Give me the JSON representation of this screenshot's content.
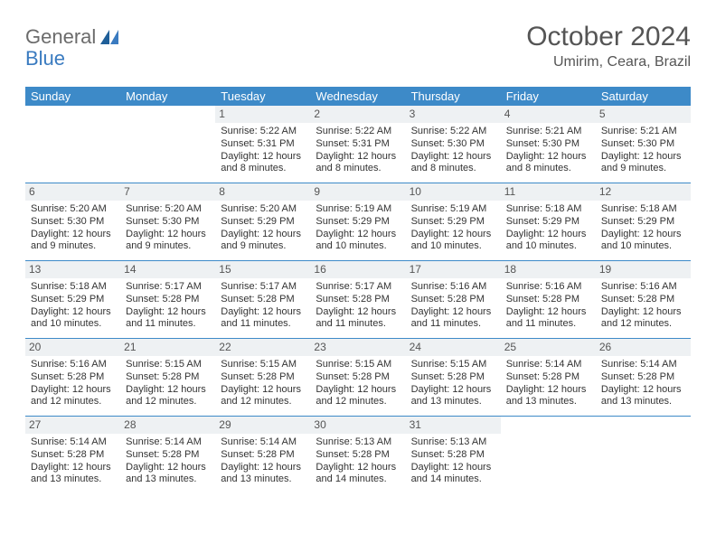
{
  "logo": {
    "word1": "General",
    "word2": "Blue"
  },
  "title": "October 2024",
  "location": "Umirim, Ceara, Brazil",
  "colors": {
    "header_bar": "#3d8ac8",
    "header_text": "#ffffff",
    "daynum_bg": "#eef1f3",
    "row_border": "#3d8ac8",
    "logo_gray": "#6b6b6b",
    "logo_blue": "#3a7bc0",
    "body_text": "#333333",
    "title_text": "#555555",
    "background": "#ffffff"
  },
  "typography": {
    "title_fontsize": 30,
    "location_fontsize": 16,
    "weekday_fontsize": 13,
    "daynum_fontsize": 12,
    "body_fontsize": 11,
    "logo_fontsize": 22
  },
  "weekdays": [
    "Sunday",
    "Monday",
    "Tuesday",
    "Wednesday",
    "Thursday",
    "Friday",
    "Saturday"
  ],
  "weeks": [
    [
      {
        "day": "",
        "sunrise": "",
        "sunset": "",
        "daylight": ""
      },
      {
        "day": "",
        "sunrise": "",
        "sunset": "",
        "daylight": ""
      },
      {
        "day": "1",
        "sunrise": "Sunrise: 5:22 AM",
        "sunset": "Sunset: 5:31 PM",
        "daylight": "Daylight: 12 hours and 8 minutes."
      },
      {
        "day": "2",
        "sunrise": "Sunrise: 5:22 AM",
        "sunset": "Sunset: 5:31 PM",
        "daylight": "Daylight: 12 hours and 8 minutes."
      },
      {
        "day": "3",
        "sunrise": "Sunrise: 5:22 AM",
        "sunset": "Sunset: 5:30 PM",
        "daylight": "Daylight: 12 hours and 8 minutes."
      },
      {
        "day": "4",
        "sunrise": "Sunrise: 5:21 AM",
        "sunset": "Sunset: 5:30 PM",
        "daylight": "Daylight: 12 hours and 8 minutes."
      },
      {
        "day": "5",
        "sunrise": "Sunrise: 5:21 AM",
        "sunset": "Sunset: 5:30 PM",
        "daylight": "Daylight: 12 hours and 9 minutes."
      }
    ],
    [
      {
        "day": "6",
        "sunrise": "Sunrise: 5:20 AM",
        "sunset": "Sunset: 5:30 PM",
        "daylight": "Daylight: 12 hours and 9 minutes."
      },
      {
        "day": "7",
        "sunrise": "Sunrise: 5:20 AM",
        "sunset": "Sunset: 5:30 PM",
        "daylight": "Daylight: 12 hours and 9 minutes."
      },
      {
        "day": "8",
        "sunrise": "Sunrise: 5:20 AM",
        "sunset": "Sunset: 5:29 PM",
        "daylight": "Daylight: 12 hours and 9 minutes."
      },
      {
        "day": "9",
        "sunrise": "Sunrise: 5:19 AM",
        "sunset": "Sunset: 5:29 PM",
        "daylight": "Daylight: 12 hours and 10 minutes."
      },
      {
        "day": "10",
        "sunrise": "Sunrise: 5:19 AM",
        "sunset": "Sunset: 5:29 PM",
        "daylight": "Daylight: 12 hours and 10 minutes."
      },
      {
        "day": "11",
        "sunrise": "Sunrise: 5:18 AM",
        "sunset": "Sunset: 5:29 PM",
        "daylight": "Daylight: 12 hours and 10 minutes."
      },
      {
        "day": "12",
        "sunrise": "Sunrise: 5:18 AM",
        "sunset": "Sunset: 5:29 PM",
        "daylight": "Daylight: 12 hours and 10 minutes."
      }
    ],
    [
      {
        "day": "13",
        "sunrise": "Sunrise: 5:18 AM",
        "sunset": "Sunset: 5:29 PM",
        "daylight": "Daylight: 12 hours and 10 minutes."
      },
      {
        "day": "14",
        "sunrise": "Sunrise: 5:17 AM",
        "sunset": "Sunset: 5:28 PM",
        "daylight": "Daylight: 12 hours and 11 minutes."
      },
      {
        "day": "15",
        "sunrise": "Sunrise: 5:17 AM",
        "sunset": "Sunset: 5:28 PM",
        "daylight": "Daylight: 12 hours and 11 minutes."
      },
      {
        "day": "16",
        "sunrise": "Sunrise: 5:17 AM",
        "sunset": "Sunset: 5:28 PM",
        "daylight": "Daylight: 12 hours and 11 minutes."
      },
      {
        "day": "17",
        "sunrise": "Sunrise: 5:16 AM",
        "sunset": "Sunset: 5:28 PM",
        "daylight": "Daylight: 12 hours and 11 minutes."
      },
      {
        "day": "18",
        "sunrise": "Sunrise: 5:16 AM",
        "sunset": "Sunset: 5:28 PM",
        "daylight": "Daylight: 12 hours and 11 minutes."
      },
      {
        "day": "19",
        "sunrise": "Sunrise: 5:16 AM",
        "sunset": "Sunset: 5:28 PM",
        "daylight": "Daylight: 12 hours and 12 minutes."
      }
    ],
    [
      {
        "day": "20",
        "sunrise": "Sunrise: 5:16 AM",
        "sunset": "Sunset: 5:28 PM",
        "daylight": "Daylight: 12 hours and 12 minutes."
      },
      {
        "day": "21",
        "sunrise": "Sunrise: 5:15 AM",
        "sunset": "Sunset: 5:28 PM",
        "daylight": "Daylight: 12 hours and 12 minutes."
      },
      {
        "day": "22",
        "sunrise": "Sunrise: 5:15 AM",
        "sunset": "Sunset: 5:28 PM",
        "daylight": "Daylight: 12 hours and 12 minutes."
      },
      {
        "day": "23",
        "sunrise": "Sunrise: 5:15 AM",
        "sunset": "Sunset: 5:28 PM",
        "daylight": "Daylight: 12 hours and 12 minutes."
      },
      {
        "day": "24",
        "sunrise": "Sunrise: 5:15 AM",
        "sunset": "Sunset: 5:28 PM",
        "daylight": "Daylight: 12 hours and 13 minutes."
      },
      {
        "day": "25",
        "sunrise": "Sunrise: 5:14 AM",
        "sunset": "Sunset: 5:28 PM",
        "daylight": "Daylight: 12 hours and 13 minutes."
      },
      {
        "day": "26",
        "sunrise": "Sunrise: 5:14 AM",
        "sunset": "Sunset: 5:28 PM",
        "daylight": "Daylight: 12 hours and 13 minutes."
      }
    ],
    [
      {
        "day": "27",
        "sunrise": "Sunrise: 5:14 AM",
        "sunset": "Sunset: 5:28 PM",
        "daylight": "Daylight: 12 hours and 13 minutes."
      },
      {
        "day": "28",
        "sunrise": "Sunrise: 5:14 AM",
        "sunset": "Sunset: 5:28 PM",
        "daylight": "Daylight: 12 hours and 13 minutes."
      },
      {
        "day": "29",
        "sunrise": "Sunrise: 5:14 AM",
        "sunset": "Sunset: 5:28 PM",
        "daylight": "Daylight: 12 hours and 13 minutes."
      },
      {
        "day": "30",
        "sunrise": "Sunrise: 5:13 AM",
        "sunset": "Sunset: 5:28 PM",
        "daylight": "Daylight: 12 hours and 14 minutes."
      },
      {
        "day": "31",
        "sunrise": "Sunrise: 5:13 AM",
        "sunset": "Sunset: 5:28 PM",
        "daylight": "Daylight: 12 hours and 14 minutes."
      },
      {
        "day": "",
        "sunrise": "",
        "sunset": "",
        "daylight": ""
      },
      {
        "day": "",
        "sunrise": "",
        "sunset": "",
        "daylight": ""
      }
    ]
  ]
}
